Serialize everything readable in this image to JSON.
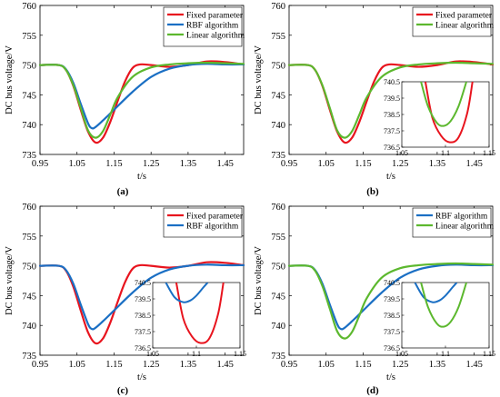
{
  "colors": {
    "red": "#e8141e",
    "blue": "#1a6fc4",
    "green": "#5cb82e",
    "axis": "#000000"
  },
  "chart_data": [
    {
      "type": "line",
      "caption": "(a)",
      "xlabel": "t/s",
      "ylabel": "DC bus voltage/V",
      "xlim": [
        0.95,
        1.5
      ],
      "ylim": [
        735,
        760
      ],
      "xticks": [
        "0.95",
        "1.05",
        "1.15",
        "1.25",
        "1.35",
        "1.45"
      ],
      "yticks": [
        "735",
        "740",
        "745",
        "750",
        "755",
        "760"
      ],
      "legend_position": "top-right",
      "series": [
        {
          "name": "Fixed parameter",
          "color": "red",
          "x": [
            0.95,
            1.0,
            1.02,
            1.04,
            1.06,
            1.08,
            1.1,
            1.12,
            1.14,
            1.16,
            1.18,
            1.2,
            1.22,
            1.25,
            1.3,
            1.35,
            1.4,
            1.45,
            1.5
          ],
          "y": [
            750,
            750,
            749.2,
            746.5,
            742.5,
            738.8,
            737.0,
            737.8,
            740.5,
            744.0,
            747.3,
            749.5,
            750.1,
            750.0,
            749.7,
            750.0,
            750.6,
            750.5,
            750.1
          ]
        },
        {
          "name": "RBF algorithm",
          "color": "blue",
          "x": [
            0.95,
            1.0,
            1.02,
            1.04,
            1.06,
            1.08,
            1.09,
            1.1,
            1.12,
            1.15,
            1.2,
            1.25,
            1.3,
            1.35,
            1.4,
            1.45,
            1.5
          ],
          "y": [
            750,
            750,
            749.3,
            747.0,
            743.5,
            740.2,
            739.4,
            739.6,
            740.7,
            742.5,
            745.5,
            748.0,
            749.4,
            750.0,
            750.2,
            750.1,
            750.1
          ]
        },
        {
          "name": "Linear algorithm",
          "color": "green",
          "x": [
            0.95,
            1.0,
            1.02,
            1.04,
            1.06,
            1.08,
            1.1,
            1.12,
            1.14,
            1.16,
            1.2,
            1.25,
            1.3,
            1.35,
            1.4,
            1.45,
            1.5
          ],
          "y": [
            750,
            750,
            749.2,
            746.6,
            742.8,
            739.0,
            737.8,
            738.9,
            741.7,
            744.6,
            748.0,
            749.6,
            750.1,
            750.3,
            750.4,
            750.3,
            750.2
          ]
        }
      ]
    },
    {
      "type": "line",
      "caption": "(b)",
      "xlabel": "t/s",
      "ylabel": "DC bus voltage/V",
      "xlim": [
        0.95,
        1.5
      ],
      "ylim": [
        735,
        760
      ],
      "xticks": [
        "0.95",
        "1.05",
        "1.15",
        "1.25",
        "1.35",
        "1.45"
      ],
      "yticks": [
        "735",
        "740",
        "745",
        "750",
        "755",
        "760"
      ],
      "legend_position": "top-right",
      "series": [
        {
          "name": "Fixed parameter",
          "color": "red",
          "x": [
            0.95,
            1.0,
            1.02,
            1.04,
            1.06,
            1.08,
            1.1,
            1.12,
            1.14,
            1.16,
            1.18,
            1.2,
            1.22,
            1.25,
            1.3,
            1.35,
            1.4,
            1.45,
            1.5
          ],
          "y": [
            750,
            750,
            749.2,
            746.5,
            742.5,
            738.8,
            737.0,
            737.8,
            740.5,
            744.0,
            747.3,
            749.5,
            750.1,
            750.0,
            749.7,
            750.0,
            750.6,
            750.5,
            750.1
          ]
        },
        {
          "name": "Linear algorithm",
          "color": "green",
          "x": [
            0.95,
            1.0,
            1.02,
            1.04,
            1.06,
            1.08,
            1.1,
            1.12,
            1.14,
            1.16,
            1.2,
            1.25,
            1.3,
            1.35,
            1.4,
            1.45,
            1.5
          ],
          "y": [
            750,
            750,
            749.2,
            746.6,
            742.8,
            739.0,
            737.8,
            738.9,
            741.7,
            744.6,
            748.0,
            749.6,
            750.1,
            750.3,
            750.4,
            750.3,
            750.2
          ]
        }
      ],
      "inset": {
        "xlim": [
          1.05,
          1.15
        ],
        "ylim": [
          736.5,
          740.5
        ],
        "xticks": [
          "1.05",
          "1.1",
          "1.15"
        ],
        "yticks": [
          "736.5",
          "737.5",
          "738.5",
          "739.5",
          "740.5"
        ],
        "series": [
          {
            "color": "red",
            "x": [
              1.077,
              1.085,
              1.095,
              1.105,
              1.115,
              1.125,
              1.131
            ],
            "y": [
              740.5,
              738.3,
              737.2,
              736.8,
              737.1,
              738.6,
              740.5
            ]
          },
          {
            "color": "green",
            "x": [
              1.072,
              1.08,
              1.09,
              1.098,
              1.106,
              1.115,
              1.124
            ],
            "y": [
              740.5,
              739.0,
              738.0,
              737.8,
              738.1,
              739.0,
              740.5
            ]
          }
        ]
      }
    },
    {
      "type": "line",
      "caption": "(c)",
      "xlabel": "t/s",
      "ylabel": "DC bus voltage/V",
      "xlim": [
        0.95,
        1.5
      ],
      "ylim": [
        735,
        760
      ],
      "xticks": [
        "0.95",
        "1.05",
        "1.15",
        "1.25",
        "1.35",
        "1.45"
      ],
      "yticks": [
        "735",
        "740",
        "745",
        "750",
        "755",
        "760"
      ],
      "legend_position": "top-right",
      "series": [
        {
          "name": "Fixed parameter",
          "color": "red",
          "x": [
            0.95,
            1.0,
            1.02,
            1.04,
            1.06,
            1.08,
            1.1,
            1.12,
            1.14,
            1.16,
            1.18,
            1.2,
            1.22,
            1.25,
            1.3,
            1.35,
            1.4,
            1.45,
            1.5
          ],
          "y": [
            750,
            750,
            749.2,
            746.5,
            742.5,
            738.8,
            737.0,
            737.8,
            740.5,
            744.0,
            747.3,
            749.5,
            750.1,
            750.0,
            749.7,
            750.0,
            750.6,
            750.5,
            750.1
          ]
        },
        {
          "name": "RBF algorithm",
          "color": "blue",
          "x": [
            0.95,
            1.0,
            1.02,
            1.04,
            1.06,
            1.08,
            1.09,
            1.1,
            1.12,
            1.15,
            1.2,
            1.25,
            1.3,
            1.35,
            1.4,
            1.45,
            1.5
          ],
          "y": [
            750,
            750,
            749.3,
            747.0,
            743.5,
            740.2,
            739.4,
            739.6,
            740.7,
            742.5,
            745.5,
            748.0,
            749.4,
            750.0,
            750.2,
            750.1,
            750.1
          ]
        }
      ],
      "inset": {
        "xlim": [
          1.05,
          1.15
        ],
        "ylim": [
          736.5,
          740.5
        ],
        "xticks": [
          "1.05",
          "1.1",
          "1.15"
        ],
        "yticks": [
          "736.5",
          "737.5",
          "738.5",
          "739.5",
          "740.5"
        ],
        "series": [
          {
            "color": "red",
            "x": [
              1.077,
              1.085,
              1.095,
              1.105,
              1.115,
              1.125,
              1.131
            ],
            "y": [
              740.5,
              738.3,
              737.2,
              736.8,
              737.1,
              738.6,
              740.5
            ]
          },
          {
            "color": "blue",
            "x": [
              1.065,
              1.075,
              1.085,
              1.093,
              1.1,
              1.108,
              1.113
            ],
            "y": [
              740.5,
              739.6,
              739.3,
              739.4,
              739.7,
              740.2,
              740.5
            ]
          }
        ]
      }
    },
    {
      "type": "line",
      "caption": "(d)",
      "xlabel": "t/s",
      "ylabel": "DC bus voltage/V",
      "xlim": [
        0.95,
        1.5
      ],
      "ylim": [
        735,
        760
      ],
      "xticks": [
        "0.95",
        "1.05",
        "1.15",
        "1.25",
        "1.35",
        "1.45"
      ],
      "yticks": [
        "735",
        "740",
        "745",
        "750",
        "755",
        "760"
      ],
      "legend_position": "top-right",
      "series": [
        {
          "name": "RBF algorithm",
          "color": "blue",
          "x": [
            0.95,
            1.0,
            1.02,
            1.04,
            1.06,
            1.08,
            1.09,
            1.1,
            1.12,
            1.15,
            1.2,
            1.25,
            1.3,
            1.35,
            1.4,
            1.45,
            1.5
          ],
          "y": [
            750,
            750,
            749.3,
            747.0,
            743.5,
            740.2,
            739.4,
            739.6,
            740.7,
            742.5,
            745.5,
            748.0,
            749.4,
            750.0,
            750.2,
            750.1,
            750.1
          ]
        },
        {
          "name": "Linear algorithm",
          "color": "green",
          "x": [
            0.95,
            1.0,
            1.02,
            1.04,
            1.06,
            1.08,
            1.1,
            1.12,
            1.14,
            1.16,
            1.2,
            1.25,
            1.3,
            1.35,
            1.4,
            1.45,
            1.5
          ],
          "y": [
            750,
            750,
            749.2,
            746.6,
            742.8,
            739.0,
            737.8,
            738.9,
            741.7,
            744.6,
            748.0,
            749.6,
            750.1,
            750.3,
            750.4,
            750.3,
            750.2
          ]
        }
      ],
      "inset": {
        "xlim": [
          1.05,
          1.15
        ],
        "ylim": [
          736.5,
          740.5
        ],
        "xticks": [
          "1.05",
          "1.1",
          "1.15"
        ],
        "yticks": [
          "736.5",
          "737.5",
          "738.5",
          "739.5",
          "740.5"
        ],
        "series": [
          {
            "color": "blue",
            "x": [
              1.065,
              1.075,
              1.085,
              1.093,
              1.1,
              1.108,
              1.113
            ],
            "y": [
              740.5,
              739.6,
              739.3,
              739.4,
              739.7,
              740.2,
              740.5
            ]
          },
          {
            "color": "green",
            "x": [
              1.072,
              1.08,
              1.09,
              1.098,
              1.106,
              1.115,
              1.124
            ],
            "y": [
              740.5,
              739.0,
              738.0,
              737.8,
              738.1,
              739.0,
              740.5
            ]
          }
        ]
      }
    }
  ]
}
